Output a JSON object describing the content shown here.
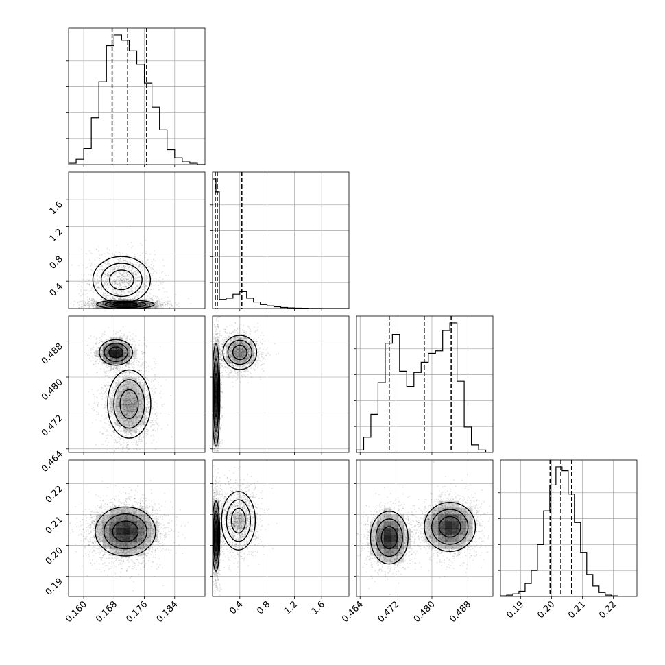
{
  "chart_data": {
    "type": "corner",
    "grid": true,
    "parameters": [
      {
        "range": [
          0.156,
          0.192
        ],
        "ticks": [
          0.16,
          0.168,
          0.176,
          0.184
        ],
        "tick_labels": [
          "0.160",
          "0.168",
          "0.176",
          "0.184"
        ],
        "quantiles": [
          0.1675,
          0.1716,
          0.1766
        ],
        "hist_bin_edges": [
          0.156,
          0.158,
          0.16,
          0.162,
          0.164,
          0.166,
          0.168,
          0.17,
          0.172,
          0.174,
          0.176,
          0.178,
          0.18,
          0.182,
          0.184,
          0.186,
          0.188,
          0.19,
          0.192
        ],
        "hist_counts": [
          1,
          4,
          12,
          35,
          62,
          89,
          97,
          93,
          85,
          75,
          61,
          43,
          26,
          11,
          5,
          2,
          1,
          0
        ]
      },
      {
        "range": [
          0.0,
          2.0
        ],
        "ticks": [
          0.4,
          0.8,
          1.2,
          1.6
        ],
        "tick_labels": [
          "0.4",
          "0.8",
          "1.2",
          "1.6"
        ],
        "quantiles": [
          0.04,
          0.07,
          0.43
        ],
        "hist_bin_edges": [
          0.0,
          0.05,
          0.1,
          0.2,
          0.3,
          0.4,
          0.5,
          0.6,
          0.7,
          0.8,
          0.9,
          1.0,
          1.1,
          1.2,
          1.3,
          1.4,
          1.5,
          1.6,
          1.7,
          1.8,
          1.9,
          2.0
        ],
        "hist_counts": [
          100,
          90,
          7,
          8,
          11,
          13,
          8,
          5,
          3,
          2,
          1.3,
          0.8,
          0.5,
          0.3,
          0.2,
          0.1,
          0.1,
          0,
          0,
          0,
          0
        ]
      },
      {
        "range": [
          0.4632,
          0.4936
        ],
        "ticks": [
          0.464,
          0.472,
          0.48,
          0.488
        ],
        "tick_labels": [
          "0.464",
          "0.472",
          "0.480",
          "0.488"
        ],
        "quantiles": [
          0.4705,
          0.4783,
          0.4843
        ],
        "hist_bin_edges": [
          0.4632,
          0.4648,
          0.4664,
          0.468,
          0.4696,
          0.4712,
          0.4728,
          0.4744,
          0.476,
          0.4776,
          0.4792,
          0.4808,
          0.4824,
          0.484,
          0.4856,
          0.4872,
          0.4888,
          0.4904,
          0.492,
          0.4936
        ],
        "hist_counts": [
          2,
          12,
          30,
          55,
          86,
          93,
          64,
          52,
          63,
          71,
          78,
          80,
          96,
          102,
          56,
          20,
          6,
          2,
          0
        ]
      },
      {
        "range": [
          0.1834,
          0.2277
        ],
        "ticks": [
          0.19,
          0.2,
          0.21,
          0.22
        ],
        "tick_labels": [
          "0.19",
          "0.20",
          "0.21",
          "0.22"
        ],
        "quantiles": [
          0.1995,
          0.203,
          0.2065
        ],
        "hist_bin_edges": [
          0.1834,
          0.1854,
          0.1874,
          0.1894,
          0.1914,
          0.1934,
          0.1954,
          0.1974,
          0.1994,
          0.2014,
          0.2034,
          0.2054,
          0.2074,
          0.2094,
          0.2114,
          0.2134,
          0.2154,
          0.2174,
          0.2194,
          0.2214,
          0.2234
        ],
        "hist_counts": [
          0.5,
          1,
          2,
          4,
          10,
          20,
          40,
          66,
          86,
          100,
          97,
          79,
          57,
          34,
          17,
          8,
          3,
          1,
          0.5,
          0
        ]
      }
    ],
    "pairs": [
      {
        "x": 0,
        "y": 1,
        "modes": [
          {
            "mx": 0.171,
            "my": 0.06,
            "sx": 0.004,
            "sy": 0.035,
            "w": 0.65
          },
          {
            "mx": 0.17,
            "my": 0.42,
            "sx": 0.004,
            "sy": 0.18,
            "w": 0.35
          }
        ]
      },
      {
        "x": 0,
        "y": 2,
        "modes": [
          {
            "mx": 0.1685,
            "my": 0.4855,
            "sx": 0.0023,
            "sy": 0.0015,
            "w": 0.4
          },
          {
            "mx": 0.172,
            "my": 0.474,
            "sx": 0.003,
            "sy": 0.004,
            "w": 0.6
          }
        ]
      },
      {
        "x": 0,
        "y": 3,
        "modes": [
          {
            "mx": 0.171,
            "my": 0.2045,
            "sx": 0.0042,
            "sy": 0.0042,
            "w": 1.0
          }
        ]
      },
      {
        "x": 1,
        "y": 2,
        "modes": [
          {
            "mx": 0.05,
            "my": 0.476,
            "sx": 0.03,
            "sy": 0.006,
            "w": 0.6
          },
          {
            "mx": 0.4,
            "my": 0.4855,
            "sx": 0.13,
            "sy": 0.002,
            "w": 0.4
          }
        ]
      },
      {
        "x": 1,
        "y": 3,
        "modes": [
          {
            "mx": 0.05,
            "my": 0.203,
            "sx": 0.03,
            "sy": 0.006,
            "w": 0.6
          },
          {
            "mx": 0.38,
            "my": 0.208,
            "sx": 0.13,
            "sy": 0.005,
            "w": 0.4
          }
        ]
      },
      {
        "x": 2,
        "y": 3,
        "modes": [
          {
            "mx": 0.4705,
            "my": 0.2025,
            "sx": 0.0022,
            "sy": 0.0045,
            "w": 0.45
          },
          {
            "mx": 0.484,
            "my": 0.206,
            "sx": 0.003,
            "sy": 0.0042,
            "w": 0.55
          }
        ]
      }
    ],
    "colors": {
      "line": "#000000",
      "grid": "#b0b0b0",
      "points": "#000000",
      "density": "#000000"
    }
  }
}
